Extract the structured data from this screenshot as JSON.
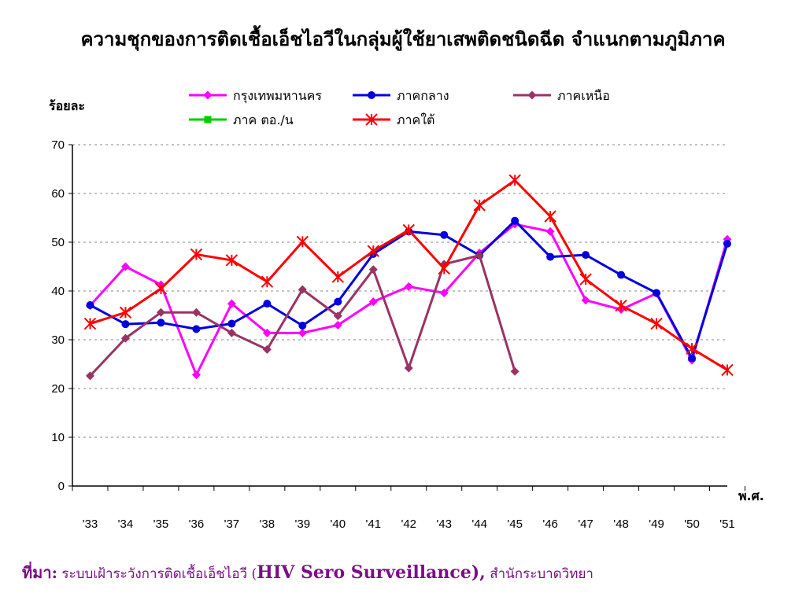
{
  "title": "ความชุกของการติดเชื้อเอ็ชไอวีในกลุ่มผู้ใช้ยาเสพติดชนิดฉีด จำแนกตามภูมิภาค",
  "source": {
    "label": "ที่มา:",
    "text_th": "ระบบเฝ้าระวังการติดเชื้อเอ็ชไอวี (",
    "text_en": "HIV Sero Surveillance),",
    "text_org": "สำนักระบาดวิทยา"
  },
  "chart_data": {
    "type": "line",
    "ylabel": "ร้อยละ",
    "xlabel": "พ.ศ.",
    "ylim": [
      0,
      70
    ],
    "yticks": [
      0,
      10,
      20,
      30,
      40,
      50,
      60,
      70
    ],
    "grid": true,
    "legend_position": "top",
    "categories": [
      "'33",
      "'34",
      "'35",
      "'36",
      "'37",
      "'38",
      "'39",
      "'40",
      "'41",
      "'42",
      "'43",
      "'44",
      "'45",
      "'46",
      "'47",
      "'48",
      "'49",
      "'50",
      "'51"
    ],
    "series": [
      {
        "name": "กรุงเทพมหานคร",
        "color": "#ff00ff",
        "marker": "diamond",
        "values": [
          37,
          45,
          41.3,
          22.8,
          37.4,
          31.4,
          31.4,
          33,
          37.8,
          40.9,
          39.6,
          47.8,
          53.7,
          52.2,
          38.1,
          36.2,
          39.5,
          25.8,
          50.6
        ]
      },
      {
        "name": "ภาคกลาง",
        "color": "#0000dd",
        "marker": "circle",
        "values": [
          37.1,
          33.2,
          33.5,
          32.2,
          33.3,
          37.4,
          32.9,
          37.8,
          47.6,
          52.2,
          51.5,
          47.3,
          54.4,
          47,
          47.4,
          43.3,
          39.6,
          26.2,
          49.7
        ]
      },
      {
        "name": "ภาคเหนือ",
        "color": "#993366",
        "marker": "diamond",
        "values": [
          22.6,
          30.3,
          35.6,
          35.6,
          31.4,
          28,
          40.3,
          34.9,
          44.4,
          24.2,
          45.5,
          47.3,
          23.5,
          null,
          null,
          null,
          null,
          null,
          null
        ]
      },
      {
        "name": "ภาค ตอ./น",
        "color": "#00cc00",
        "marker": "square",
        "values": [
          null,
          null,
          null,
          null,
          null,
          null,
          null,
          null,
          null,
          null,
          null,
          null,
          null,
          null,
          null,
          null,
          null,
          null,
          null
        ]
      },
      {
        "name": "ภาคใต้",
        "color": "#ff0000",
        "marker": "asterisk",
        "values": [
          33.3,
          35.6,
          40.5,
          47.5,
          46.3,
          41.9,
          50.1,
          42.9,
          48.2,
          52.5,
          44.6,
          57.6,
          62.7,
          55.3,
          42.4,
          37,
          33.3,
          28.2,
          23.8
        ]
      }
    ]
  }
}
